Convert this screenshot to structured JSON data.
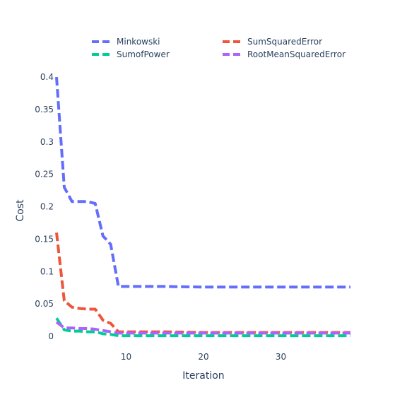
{
  "chart_data": {
    "type": "line",
    "xlabel": "Iteration",
    "ylabel": "Cost",
    "xlim": [
      1,
      39
    ],
    "ylim": [
      0,
      0.41
    ],
    "x_ticks": [
      10,
      20,
      30
    ],
    "y_ticks": [
      0,
      0.05,
      0.1,
      0.15,
      0.2,
      0.25,
      0.3,
      0.35,
      0.4
    ],
    "y_tick_labels": [
      "0",
      "0.05",
      "0.1",
      "0.15",
      "0.2",
      "0.25",
      "0.3",
      "0.35",
      "0.4"
    ],
    "grid": false,
    "legend_position": "top",
    "line_style": "dashed",
    "series": [
      {
        "name": "Minkowski",
        "color": "#636efa",
        "x": [
          1,
          2,
          3,
          4,
          5,
          6,
          7,
          8,
          9,
          10,
          15,
          20,
          25,
          30,
          35,
          39
        ],
        "values": [
          0.4,
          0.23,
          0.208,
          0.208,
          0.208,
          0.205,
          0.155,
          0.142,
          0.077,
          0.077,
          0.077,
          0.076,
          0.076,
          0.076,
          0.076,
          0.076
        ]
      },
      {
        "name": "SumSquaredError",
        "color": "#ef553b",
        "x": [
          1,
          2,
          3,
          4,
          5,
          6,
          7,
          8,
          9,
          10,
          15,
          20,
          25,
          30,
          35,
          39
        ],
        "values": [
          0.16,
          0.055,
          0.045,
          0.043,
          0.042,
          0.042,
          0.025,
          0.02,
          0.007,
          0.007,
          0.007,
          0.006,
          0.006,
          0.006,
          0.006,
          0.006
        ]
      },
      {
        "name": "SumofPower",
        "color": "#00cc96",
        "x": [
          1,
          2,
          3,
          4,
          5,
          6,
          7,
          8,
          9,
          10,
          15,
          20,
          25,
          30,
          35,
          39
        ],
        "values": [
          0.028,
          0.01,
          0.008,
          0.008,
          0.007,
          0.007,
          0.004,
          0.003,
          0.001,
          0.001,
          0.001,
          0.001,
          0.001,
          0.001,
          0.001,
          0.001
        ]
      },
      {
        "name": "RootMeanSquaredError",
        "color": "#ab63fa",
        "x": [
          1,
          2,
          3,
          4,
          5,
          6,
          7,
          8,
          9,
          10,
          15,
          20,
          25,
          30,
          35,
          39
        ],
        "values": [
          0.022,
          0.013,
          0.013,
          0.012,
          0.012,
          0.011,
          0.009,
          0.007,
          0.005,
          0.005,
          0.005,
          0.005,
          0.005,
          0.005,
          0.005,
          0.005
        ]
      }
    ]
  }
}
